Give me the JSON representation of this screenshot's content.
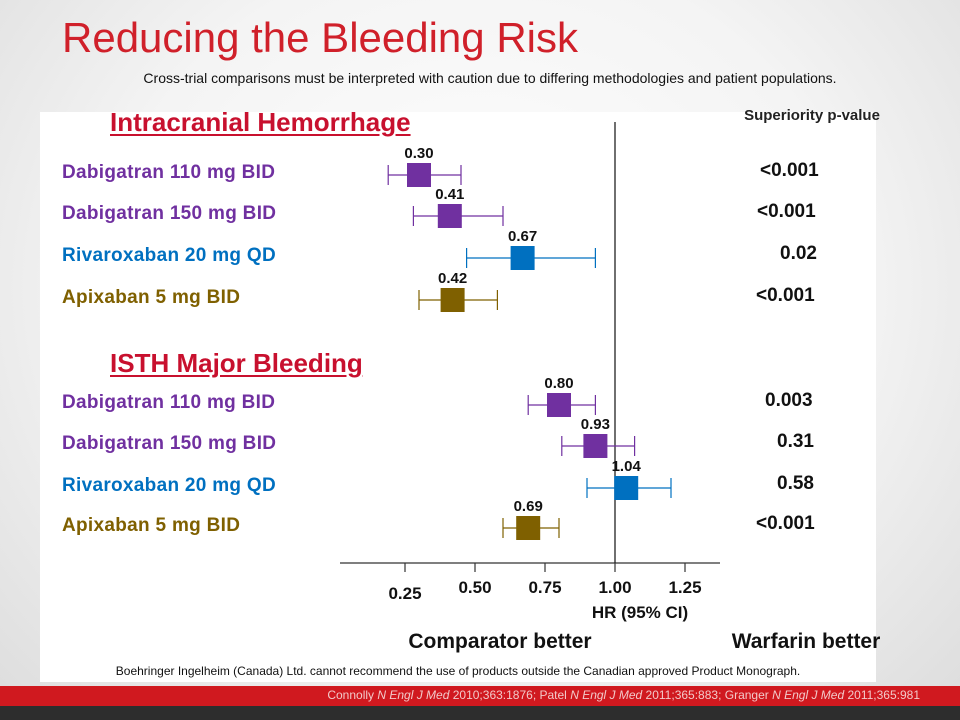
{
  "title": "Reducing the Bleeding Risk",
  "subtitle": "Cross-trial comparisons must be interpreted with caution due to differing methodologies and patient populations.",
  "pvalue_header": "Superiority p-value",
  "colors": {
    "title_red": "#d0202a",
    "dabigatran": "#7030a0",
    "rivaroxaban": "#0070c0",
    "apixaban": "#7f6000"
  },
  "chart_data": {
    "type": "forest",
    "xlabel": "HR    (95% CI)",
    "x_ticks": [
      0.25,
      0.5,
      0.75,
      1.0,
      1.25
    ],
    "x_tick_labels": [
      "0.25",
      "0.50",
      "0.75",
      "1.00",
      "1.25"
    ],
    "reference_line": 1.0,
    "left_caption": "Comparator better",
    "right_caption": "Warfarin better",
    "groups": [
      {
        "title": "Intracranial Hemorrhage",
        "rows": [
          {
            "label": "Dabigatran 110 mg BID",
            "hr": 0.3,
            "hr_label": "0.30",
            "ci": [
              0.19,
              0.45
            ],
            "p": "<0.001",
            "color": "#7030a0"
          },
          {
            "label": "Dabigatran 150 mg BID",
            "hr": 0.41,
            "hr_label": "0.41",
            "ci": [
              0.28,
              0.6
            ],
            "p": "<0.001",
            "color": "#7030a0"
          },
          {
            "label": "Rivaroxaban 20 mg QD",
            "hr": 0.67,
            "hr_label": "0.67",
            "ci": [
              0.47,
              0.93
            ],
            "p": "0.02",
            "color": "#0070c0"
          },
          {
            "label": "Apixaban 5 mg BID",
            "hr": 0.42,
            "hr_label": "0.42",
            "ci": [
              0.3,
              0.58
            ],
            "p": "<0.001",
            "color": "#7f6000"
          }
        ]
      },
      {
        "title": "ISTH Major Bleeding",
        "rows": [
          {
            "label": "Dabigatran 110 mg BID",
            "hr": 0.8,
            "hr_label": "0.80",
            "ci": [
              0.69,
              0.93
            ],
            "p": "0.003",
            "color": "#7030a0"
          },
          {
            "label": "Dabigatran 150 mg BID",
            "hr": 0.93,
            "hr_label": "0.93",
            "ci": [
              0.81,
              1.07
            ],
            "p": "0.31",
            "color": "#7030a0"
          },
          {
            "label": "Rivaroxaban 20 mg QD",
            "hr": 1.04,
            "hr_label": "1.04",
            "ci": [
              0.9,
              1.2
            ],
            "p": "0.58",
            "color": "#0070c0"
          },
          {
            "label": "Apixaban 5 mg BID",
            "hr": 0.69,
            "hr_label": "0.69",
            "ci": [
              0.6,
              0.8
            ],
            "p": "<0.001",
            "color": "#7f6000"
          }
        ]
      }
    ]
  },
  "disclaimer": "Boehringer Ingelheim (Canada) Ltd. cannot recommend the use of products outside the Canadian approved Product Monograph.",
  "references": {
    "r1_author": "Connolly ",
    "r1_journal": "N Engl J Med",
    "r1_cite": " 2010;363:1876; ",
    "r2_author": "Patel ",
    "r2_journal": "N Engl J Med",
    "r2_cite": "  2011;365:883; ",
    "r3_author": "Granger ",
    "r3_journal": "N Engl J Med",
    "r3_cite": "  2011;365:981"
  }
}
